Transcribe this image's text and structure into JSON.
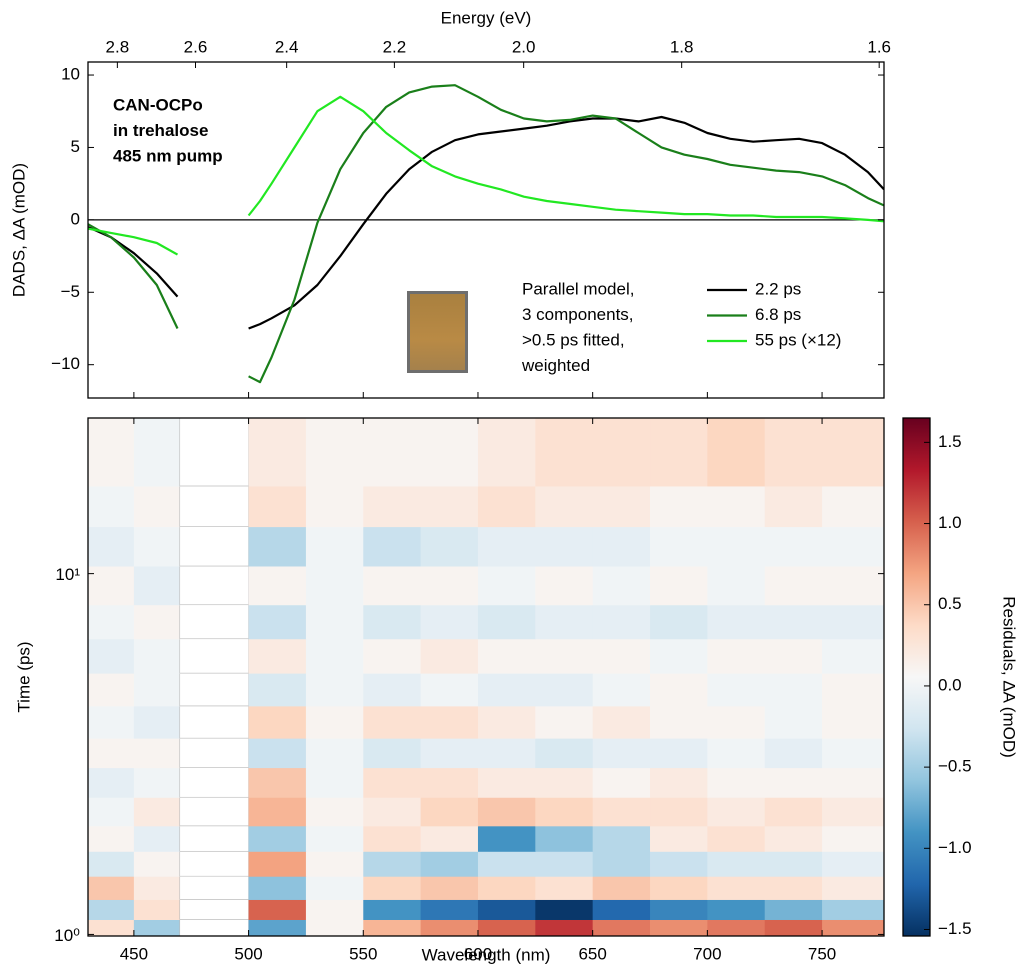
{
  "chart_data": [
    {
      "type": "line",
      "x": [
        430,
        440,
        450,
        460,
        469,
        485,
        500,
        505,
        510,
        520,
        530,
        540,
        550,
        560,
        570,
        580,
        590,
        600,
        610,
        620,
        630,
        640,
        650,
        660,
        670,
        680,
        690,
        700,
        710,
        720,
        730,
        740,
        750,
        760,
        770,
        777
      ],
      "series": [
        {
          "name": "2.2 ps",
          "color": "#000000",
          "values": [
            -0.5,
            -1.2,
            -2.3,
            -3.7,
            -5.3,
            null,
            -7.5,
            -7.2,
            -6.8,
            -5.9,
            -4.5,
            -2.5,
            -0.3,
            1.8,
            3.5,
            4.7,
            5.5,
            5.9,
            6.1,
            6.3,
            6.5,
            6.8,
            7.0,
            7.0,
            6.8,
            7.1,
            6.7,
            6.0,
            5.6,
            5.4,
            5.5,
            5.6,
            5.3,
            4.5,
            3.3,
            2.1
          ]
        },
        {
          "name": "6.8 ps",
          "color": "#1a7f1a",
          "values": [
            -0.3,
            -1.2,
            -2.6,
            -4.5,
            -7.5,
            null,
            -10.8,
            -11.2,
            -9.5,
            -5.5,
            -0.2,
            3.5,
            6.0,
            7.8,
            8.8,
            9.2,
            9.3,
            8.5,
            7.6,
            7.0,
            6.8,
            6.9,
            7.2,
            7.0,
            6.0,
            5.0,
            4.5,
            4.2,
            3.8,
            3.6,
            3.4,
            3.3,
            3.0,
            2.4,
            1.5,
            1.0
          ]
        },
        {
          "name": "55 ps (×12)",
          "color": "#22e822",
          "values": [
            -0.6,
            -0.9,
            -1.2,
            -1.6,
            -2.4,
            null,
            0.3,
            1.3,
            2.5,
            5.0,
            7.5,
            8.5,
            7.5,
            6.0,
            4.8,
            3.7,
            3.0,
            2.5,
            2.1,
            1.6,
            1.3,
            1.1,
            0.9,
            0.7,
            0.6,
            0.5,
            0.4,
            0.4,
            0.3,
            0.3,
            0.2,
            0.2,
            0.2,
            0.1,
            0.0,
            -0.1
          ]
        }
      ],
      "xlim": [
        430,
        777
      ],
      "xticks": [
        450,
        500,
        550,
        600,
        650,
        700,
        750
      ],
      "ylim": [
        -12.3,
        10.9
      ],
      "yticks": [
        10,
        5,
        0,
        {
          "value": -5,
          "label": "−5"
        },
        {
          "value": -10,
          "label": "−10"
        }
      ],
      "ylabel": "DADS, ΔA (mOD)",
      "x2label": "Energy (eV)",
      "x2ticks": [
        2.8,
        2.6,
        2.4,
        2.2,
        {
          "value": 2.0,
          "label": "2.0"
        },
        1.8,
        1.6
      ],
      "annotations": [
        "CAN-OCPo",
        "in trehalose",
        "485 nm pump"
      ],
      "model_note": [
        "Parallel model,",
        "3 components,",
        ">0.5 ps fitted,",
        "weighted"
      ],
      "legend": "lower right"
    },
    {
      "type": "heatmap",
      "x_edges": [
        430,
        450,
        470,
        500,
        525,
        550,
        575,
        600,
        625,
        650,
        675,
        700,
        725,
        750,
        777
      ],
      "y_edges": [
        0.99,
        1.1,
        1.25,
        1.45,
        1.7,
        2,
        2.4,
        2.9,
        3.5,
        4.3,
        5.3,
        6.6,
        8.2,
        10.5,
        13.5,
        17.5,
        27
      ],
      "values": [
        [
          0.3,
          -0.5,
          null,
          -0.8,
          0.1,
          0.6,
          0.8,
          1.0,
          1.2,
          0.9,
          0.8,
          0.9,
          1.0,
          0.8
        ],
        [
          -0.4,
          0.3,
          null,
          1.0,
          0.1,
          -0.9,
          -1.1,
          -1.3,
          -1.5,
          -1.2,
          -1.0,
          -0.9,
          -0.7,
          -0.5
        ],
        [
          0.5,
          0.2,
          null,
          -0.6,
          0.0,
          0.4,
          0.5,
          0.4,
          0.3,
          0.5,
          0.4,
          0.3,
          0.3,
          0.2
        ],
        [
          -0.2,
          0.1,
          null,
          0.7,
          0.1,
          -0.4,
          -0.5,
          -0.3,
          -0.3,
          -0.4,
          -0.3,
          -0.2,
          -0.2,
          -0.1
        ],
        [
          0.1,
          -0.1,
          null,
          -0.5,
          0.0,
          0.3,
          0.2,
          -0.9,
          -0.6,
          -0.4,
          0.2,
          0.3,
          0.2,
          0.1
        ],
        [
          0.0,
          0.2,
          null,
          0.6,
          0.1,
          0.2,
          0.4,
          0.5,
          0.4,
          0.3,
          0.3,
          0.2,
          0.3,
          0.2
        ],
        [
          -0.1,
          0.0,
          null,
          0.5,
          0.0,
          0.3,
          0.3,
          0.2,
          0.2,
          0.1,
          0.2,
          0.1,
          0.1,
          0.1
        ],
        [
          0.1,
          0.1,
          null,
          -0.3,
          0.0,
          -0.2,
          -0.1,
          -0.1,
          -0.2,
          -0.1,
          -0.1,
          0.0,
          -0.1,
          0.0
        ],
        [
          0.0,
          -0.1,
          null,
          0.4,
          0.1,
          0.3,
          0.3,
          0.2,
          0.1,
          0.2,
          0.1,
          0.1,
          0.0,
          0.1
        ],
        [
          0.1,
          0.0,
          null,
          -0.2,
          0.0,
          -0.1,
          0.0,
          -0.1,
          -0.1,
          0.0,
          0.1,
          0.0,
          0.0,
          0.1
        ],
        [
          -0.1,
          0.0,
          null,
          0.2,
          0.0,
          0.1,
          0.2,
          0.1,
          0.1,
          0.1,
          0.0,
          0.1,
          0.1,
          0.0
        ],
        [
          0.0,
          0.1,
          null,
          -0.3,
          0.0,
          -0.2,
          -0.1,
          -0.2,
          -0.1,
          -0.1,
          -0.2,
          -0.1,
          -0.1,
          -0.1
        ],
        [
          0.1,
          -0.1,
          null,
          0.1,
          0.0,
          0.1,
          0.1,
          0.0,
          0.1,
          0.0,
          0.1,
          0.0,
          0.1,
          0.1
        ],
        [
          -0.1,
          0.0,
          null,
          -0.4,
          0.0,
          -0.3,
          -0.2,
          -0.1,
          -0.1,
          -0.1,
          0.0,
          0.0,
          0.0,
          0.0
        ],
        [
          0.0,
          0.1,
          null,
          0.3,
          0.1,
          0.2,
          0.2,
          0.3,
          0.2,
          0.2,
          0.1,
          0.1,
          0.2,
          0.1
        ],
        [
          0.1,
          0.0,
          null,
          0.2,
          0.1,
          0.1,
          0.1,
          0.2,
          0.3,
          0.3,
          0.3,
          0.4,
          0.3,
          0.3
        ]
      ],
      "xlim": [
        430,
        777
      ],
      "xticks": [
        450,
        500,
        550,
        600,
        650,
        700,
        750
      ],
      "xlabel": "Wavelength (nm)",
      "ylim": [
        0.99,
        27
      ],
      "ylog": true,
      "yticks": [
        {
          "value": 1,
          "label": "10⁰"
        },
        {
          "value": 10,
          "label": "10¹"
        }
      ],
      "ylabel": "Time (ps)",
      "colormap": [
        "#053061",
        "#2166ac",
        "#4393c3",
        "#92c5de",
        "#d1e5f0",
        "#f7f7f7",
        "#fddbc7",
        "#f4a582",
        "#d6604d",
        "#b2182b",
        "#67001f"
      ],
      "clim": [
        -1.54,
        1.65
      ],
      "cticks": [
        {
          "value": 1.5,
          "label": "1.5"
        },
        {
          "value": 1.0,
          "label": "1.0"
        },
        {
          "value": 0.5,
          "label": "0.5"
        },
        {
          "value": 0.0,
          "label": "0.0"
        },
        {
          "value": -0.5,
          "label": "−0.5"
        },
        {
          "value": -1.0,
          "label": "−1.0"
        },
        {
          "value": -1.5,
          "label": "−1.5"
        }
      ],
      "clabel": "Residuals, ΔA (mOD)"
    }
  ]
}
